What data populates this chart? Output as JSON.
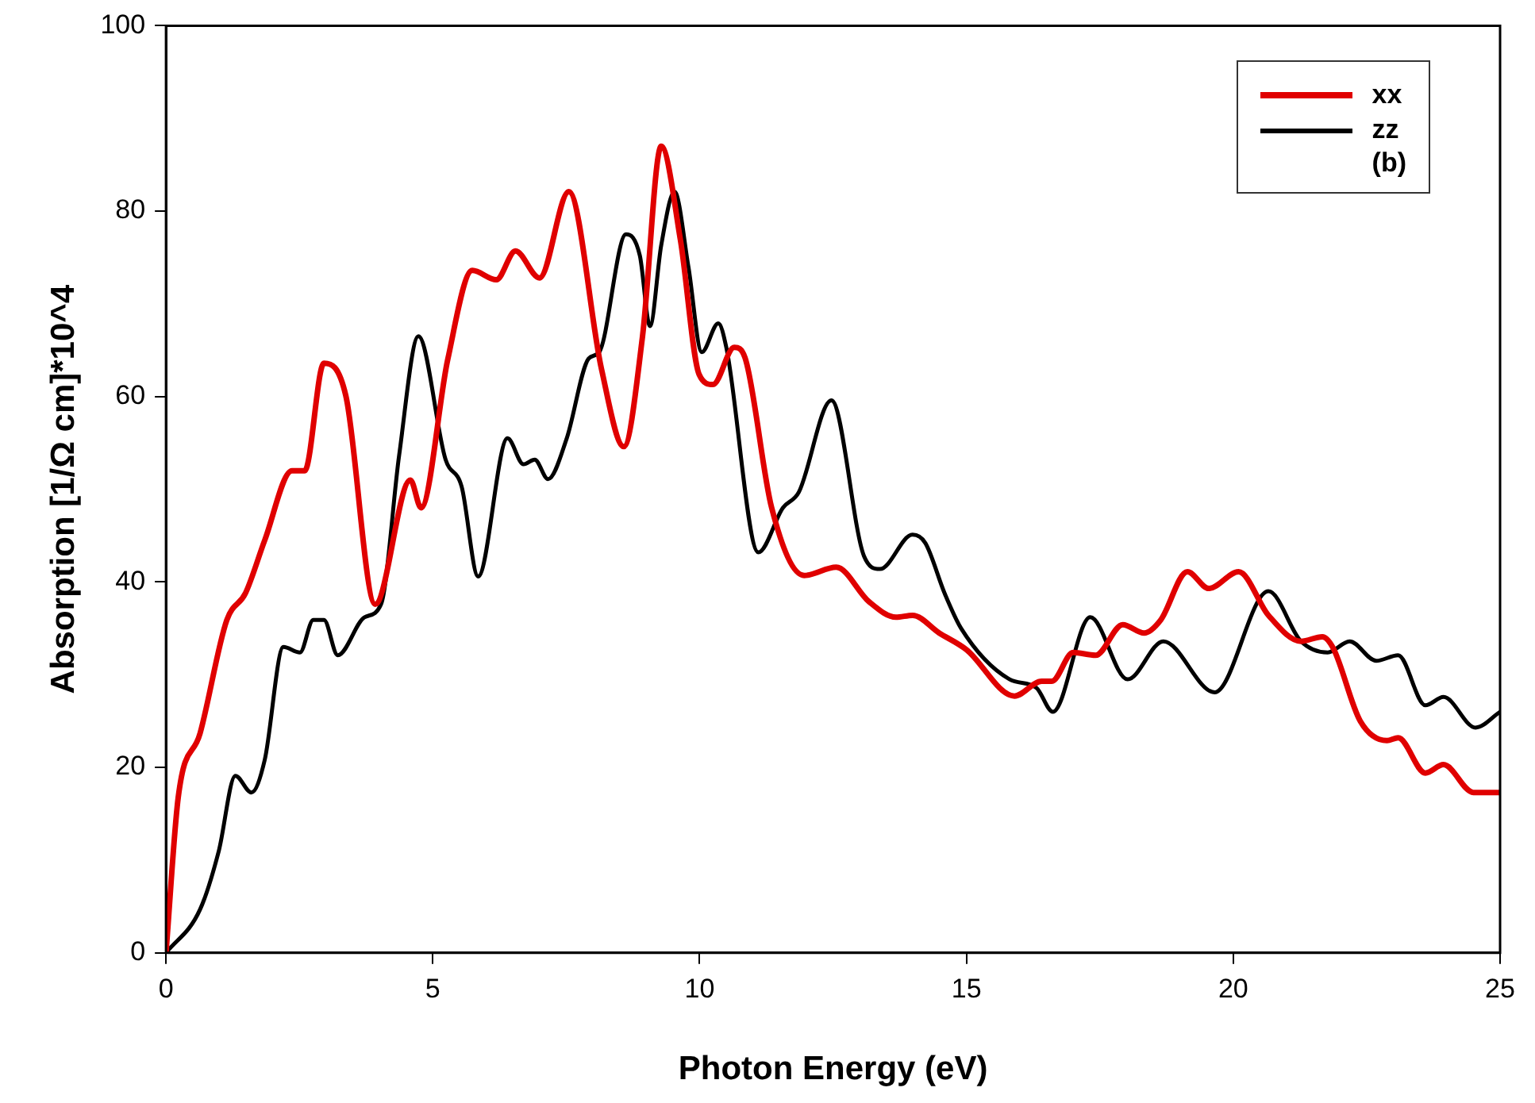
{
  "chart_data": {
    "type": "line",
    "xlabel": "Photon Energy (eV)",
    "ylabel": "Absorption [1/Ω cm]*10^4",
    "xlim": [
      0,
      25
    ],
    "xticks": [
      0,
      5,
      10,
      15,
      20,
      25
    ],
    "ylim": [
      0,
      100
    ],
    "yticks": [
      0,
      20,
      40,
      60,
      80,
      100
    ],
    "grid": false,
    "legend": "top right",
    "marker": "none",
    "line_style": "solid",
    "annotations": [
      "(b)"
    ],
    "series": [
      {
        "name": "xx",
        "color": "#e00000",
        "x": [
          0,
          0.23,
          0.64,
          1.14,
          1.49,
          1.85,
          2.36,
          2.6,
          2.96,
          3.37,
          3.92,
          4.58,
          4.78,
          5.28,
          5.74,
          6.19,
          6.55,
          7.0,
          7.55,
          8.16,
          8.58,
          8.93,
          9.28,
          9.64,
          9.99,
          10.25,
          10.65,
          10.85,
          11.35,
          11.96,
          12.56,
          13.17,
          13.68,
          13.99,
          14.49,
          15.0,
          15.9,
          16.41,
          16.6,
          17.0,
          17.42,
          17.93,
          18.33,
          18.64,
          19.14,
          19.54,
          20.1,
          20.66,
          21.27,
          21.67,
          21.87,
          22.38,
          22.88,
          23.09,
          23.6,
          23.94,
          24.5,
          25
        ],
        "values": [
          0,
          16.8,
          23.7,
          35.9,
          38.8,
          44.5,
          52,
          52,
          63.6,
          60.1,
          37.6,
          51,
          48,
          64,
          73.6,
          72.6,
          75.7,
          72.8,
          82.1,
          63,
          54.6,
          66.5,
          87,
          76.9,
          62.4,
          61.3,
          65.3,
          64.2,
          48,
          40.7,
          41.6,
          37.9,
          36.2,
          36.4,
          34.5,
          32.7,
          27.7,
          29.3,
          29.3,
          32.4,
          32.1,
          35.4,
          34.5,
          35.9,
          41.1,
          39.3,
          41.1,
          36.4,
          33.6,
          34.1,
          32.9,
          25,
          22.9,
          23.2,
          19.4,
          20.3,
          17.3,
          17.3
        ]
      },
      {
        "name": "zz",
        "color": "#000000",
        "x": [
          0,
          0.64,
          0.99,
          1.3,
          1.6,
          1.85,
          2.2,
          2.51,
          2.76,
          2.96,
          3.22,
          3.72,
          4.03,
          4.37,
          4.73,
          5.24,
          5.54,
          5.85,
          6.4,
          6.7,
          6.91,
          7.16,
          7.51,
          7.92,
          8.12,
          8.62,
          8.88,
          9.07,
          9.28,
          9.53,
          9.79,
          10.04,
          10.35,
          10.5,
          11.1,
          11.56,
          11.86,
          12.47,
          13.08,
          13.38,
          13.99,
          14.23,
          14.59,
          14.9,
          15.81,
          16.31,
          16.62,
          17.32,
          18.02,
          18.69,
          19.65,
          20.66,
          21.27,
          21.77,
          22.18,
          22.68,
          23.09,
          23.6,
          23.94,
          24.54,
          25
        ],
        "values": [
          0,
          4.7,
          11,
          19.1,
          17.3,
          20.8,
          33,
          32.4,
          35.9,
          35.9,
          32.1,
          36.2,
          37.6,
          53.7,
          66.5,
          53.2,
          50.3,
          40.6,
          55.5,
          52.7,
          53.2,
          51.1,
          55.5,
          64.1,
          64.8,
          77.5,
          75.2,
          67.6,
          76.3,
          82.1,
          74,
          64.8,
          67.9,
          65.3,
          43.2,
          48,
          49.7,
          59.6,
          42.8,
          41.4,
          45.1,
          44.2,
          38.8,
          35,
          29.5,
          28.6,
          26,
          36.2,
          29.5,
          33.6,
          28.1,
          39,
          33.6,
          32.4,
          33.6,
          31.5,
          32.1,
          26.7,
          27.6,
          24.3,
          26
        ]
      }
    ]
  }
}
